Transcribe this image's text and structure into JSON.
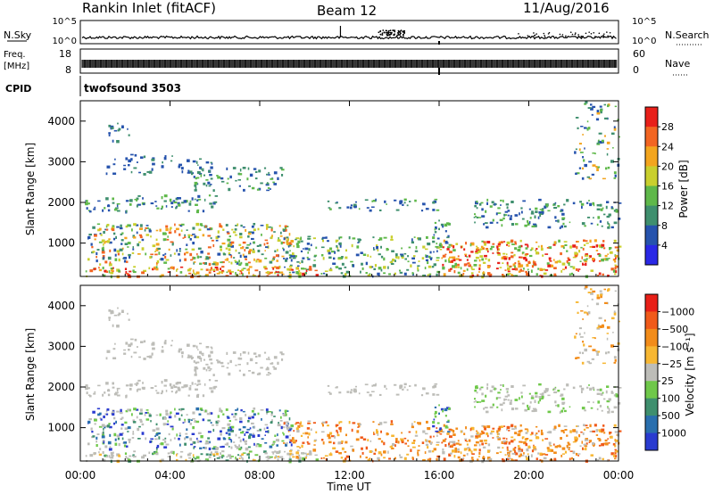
{
  "header": {
    "station": "Rankin Inlet (fitACF)",
    "beam": "Beam 12",
    "date": "11/Aug/2016"
  },
  "panels": {
    "nsky": {
      "left_label": "N.Sky",
      "left_ticks": [
        "10^5",
        "10^0"
      ],
      "right_ticks": [
        "10^5",
        "10^0"
      ],
      "right_label": "N.Search"
    },
    "freq": {
      "left_label_1": "Freq.",
      "left_label_2": "[MHz]",
      "left_ticks": [
        "18",
        "8"
      ],
      "right_ticks": [
        "60",
        "0"
      ],
      "right_label": "Nave"
    },
    "cpid": {
      "label": "CPID",
      "value": "twofsound 3503"
    }
  },
  "chart_data": [
    {
      "type": "heatmap",
      "name": "power",
      "ylabel": "Slant Range [km]",
      "yticks": [
        1000,
        2000,
        3000,
        4000
      ],
      "ylim": [
        180,
        4500
      ],
      "xlim_hours": [
        0,
        24
      ],
      "colorbar": {
        "label": "Power [dB]",
        "ticks": [
          "4",
          "8",
          "12",
          "16",
          "20",
          "24",
          "28"
        ],
        "colors": [
          "#2a28e6",
          "#2653ad",
          "#3f8f6e",
          "#5fb84a",
          "#c9cf2e",
          "#f3a51e",
          "#f26522",
          "#e8201a"
        ]
      }
    },
    {
      "type": "heatmap",
      "name": "velocity",
      "ylabel": "Slant Range [km]",
      "yticks": [
        1000,
        2000,
        3000,
        4000
      ],
      "ylim": [
        180,
        4500
      ],
      "xlim_hours": [
        0,
        24
      ],
      "colorbar": {
        "label": "Velocity [m s⁻¹]",
        "ticks": [
          "1000",
          "500",
          "100",
          "25",
          "−25",
          "−100",
          "−500",
          "−1000"
        ],
        "colors": [
          "#2a3bd0",
          "#2a6fae",
          "#3f8f6e",
          "#6fc84a",
          "#bdbdb8",
          "#f7b733",
          "#f28c1a",
          "#f05a1a",
          "#e82018"
        ]
      }
    }
  ],
  "xaxis": {
    "label": "Time UT",
    "ticks": [
      "00:00",
      "04:00",
      "08:00",
      "12:00",
      "16:00",
      "20:00",
      "00:00"
    ]
  }
}
